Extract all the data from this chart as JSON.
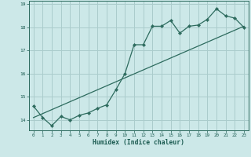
{
  "xlabel": "Humidex (Indice chaleur)",
  "background_color": "#cce8e8",
  "grid_color": "#aacccc",
  "line_color": "#2d6b5e",
  "xlim": [
    -0.5,
    23.5
  ],
  "ylim": [
    13.55,
    19.15
  ],
  "yticks": [
    14,
    15,
    16,
    17,
    18,
    19
  ],
  "xticks": [
    0,
    1,
    2,
    3,
    4,
    5,
    6,
    7,
    8,
    9,
    10,
    11,
    12,
    13,
    14,
    15,
    16,
    17,
    18,
    19,
    20,
    21,
    22,
    23
  ],
  "series1_x": [
    0,
    1,
    2,
    3,
    4,
    5,
    6,
    7,
    8,
    9,
    10,
    11,
    12,
    13,
    14,
    15,
    16,
    17,
    18,
    19,
    20,
    21,
    22,
    23
  ],
  "series1_y": [
    14.6,
    14.1,
    13.75,
    14.15,
    14.0,
    14.2,
    14.3,
    14.5,
    14.65,
    15.3,
    16.0,
    17.25,
    17.25,
    18.05,
    18.05,
    18.3,
    17.75,
    18.05,
    18.1,
    18.35,
    18.8,
    18.5,
    18.4,
    18.0
  ],
  "series2_x": [
    0,
    23
  ],
  "series2_y": [
    14.1,
    18.05
  ],
  "markersize": 2.2,
  "linewidth": 0.9
}
